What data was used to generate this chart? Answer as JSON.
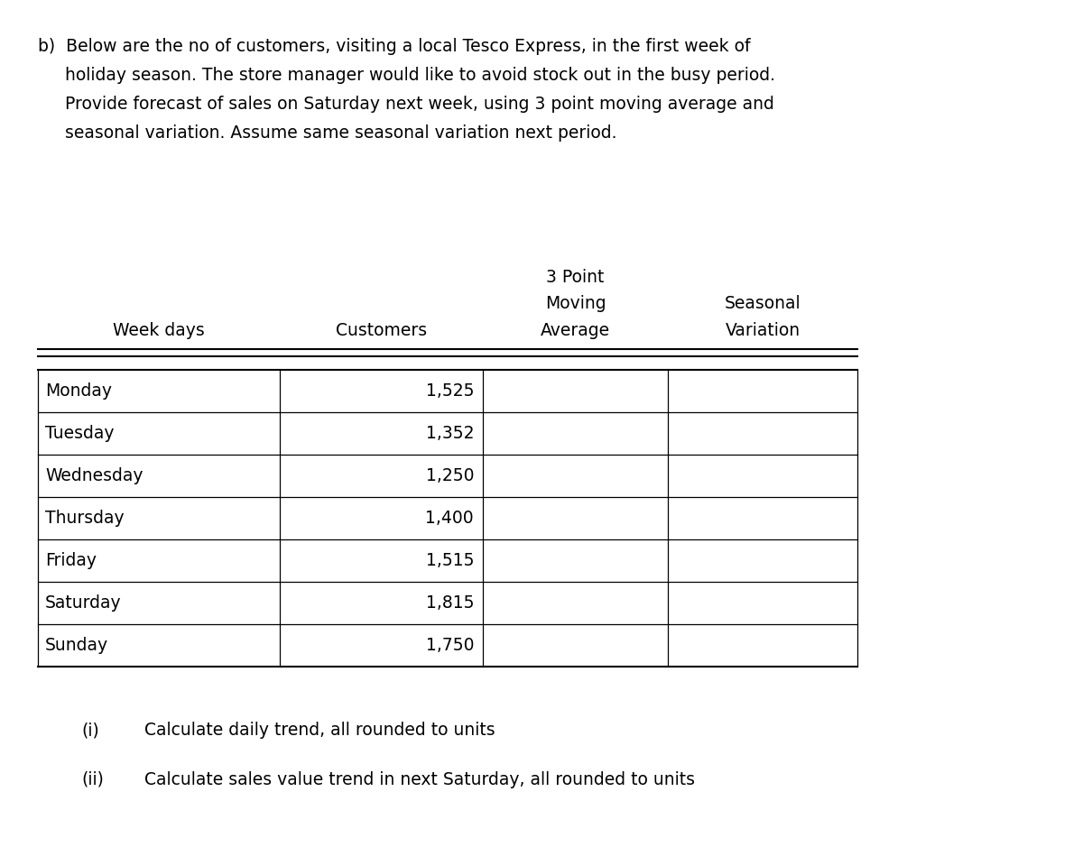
{
  "intro_line1": "b)  Below are the no of customers, visiting a local Tesco Express, in the first week of",
  "intro_line2": "     holiday season. The store manager would like to avoid stock out in the busy period.",
  "intro_line3": "     Provide forecast of sales on Saturday next week, using 3 point moving average and",
  "intro_line4": "     seasonal variation. Assume same seasonal variation next period.",
  "header_3point": "3 Point",
  "header_moving": "Moving",
  "header_seasonal": "Seasonal",
  "header_weekdays": "Week days",
  "header_customers": "Customers",
  "header_average": "Average",
  "header_variation": "Variation",
  "days": [
    "Monday",
    "Tuesday",
    "Wednesday",
    "Thursday",
    "Friday",
    "Saturday",
    "Sunday"
  ],
  "customers": [
    "1,525",
    "1,352",
    "1,250",
    "1,400",
    "1,515",
    "1,815",
    "1,750"
  ],
  "question_i_label": "(i)",
  "question_i_text": "Calculate daily trend, all rounded to units",
  "question_ii_label": "(ii)",
  "question_ii_text": "Calculate sales value trend in next Saturday, all rounded to units",
  "bg_color": "#ffffff",
  "text_color": "#000000",
  "font_size": 13.5
}
